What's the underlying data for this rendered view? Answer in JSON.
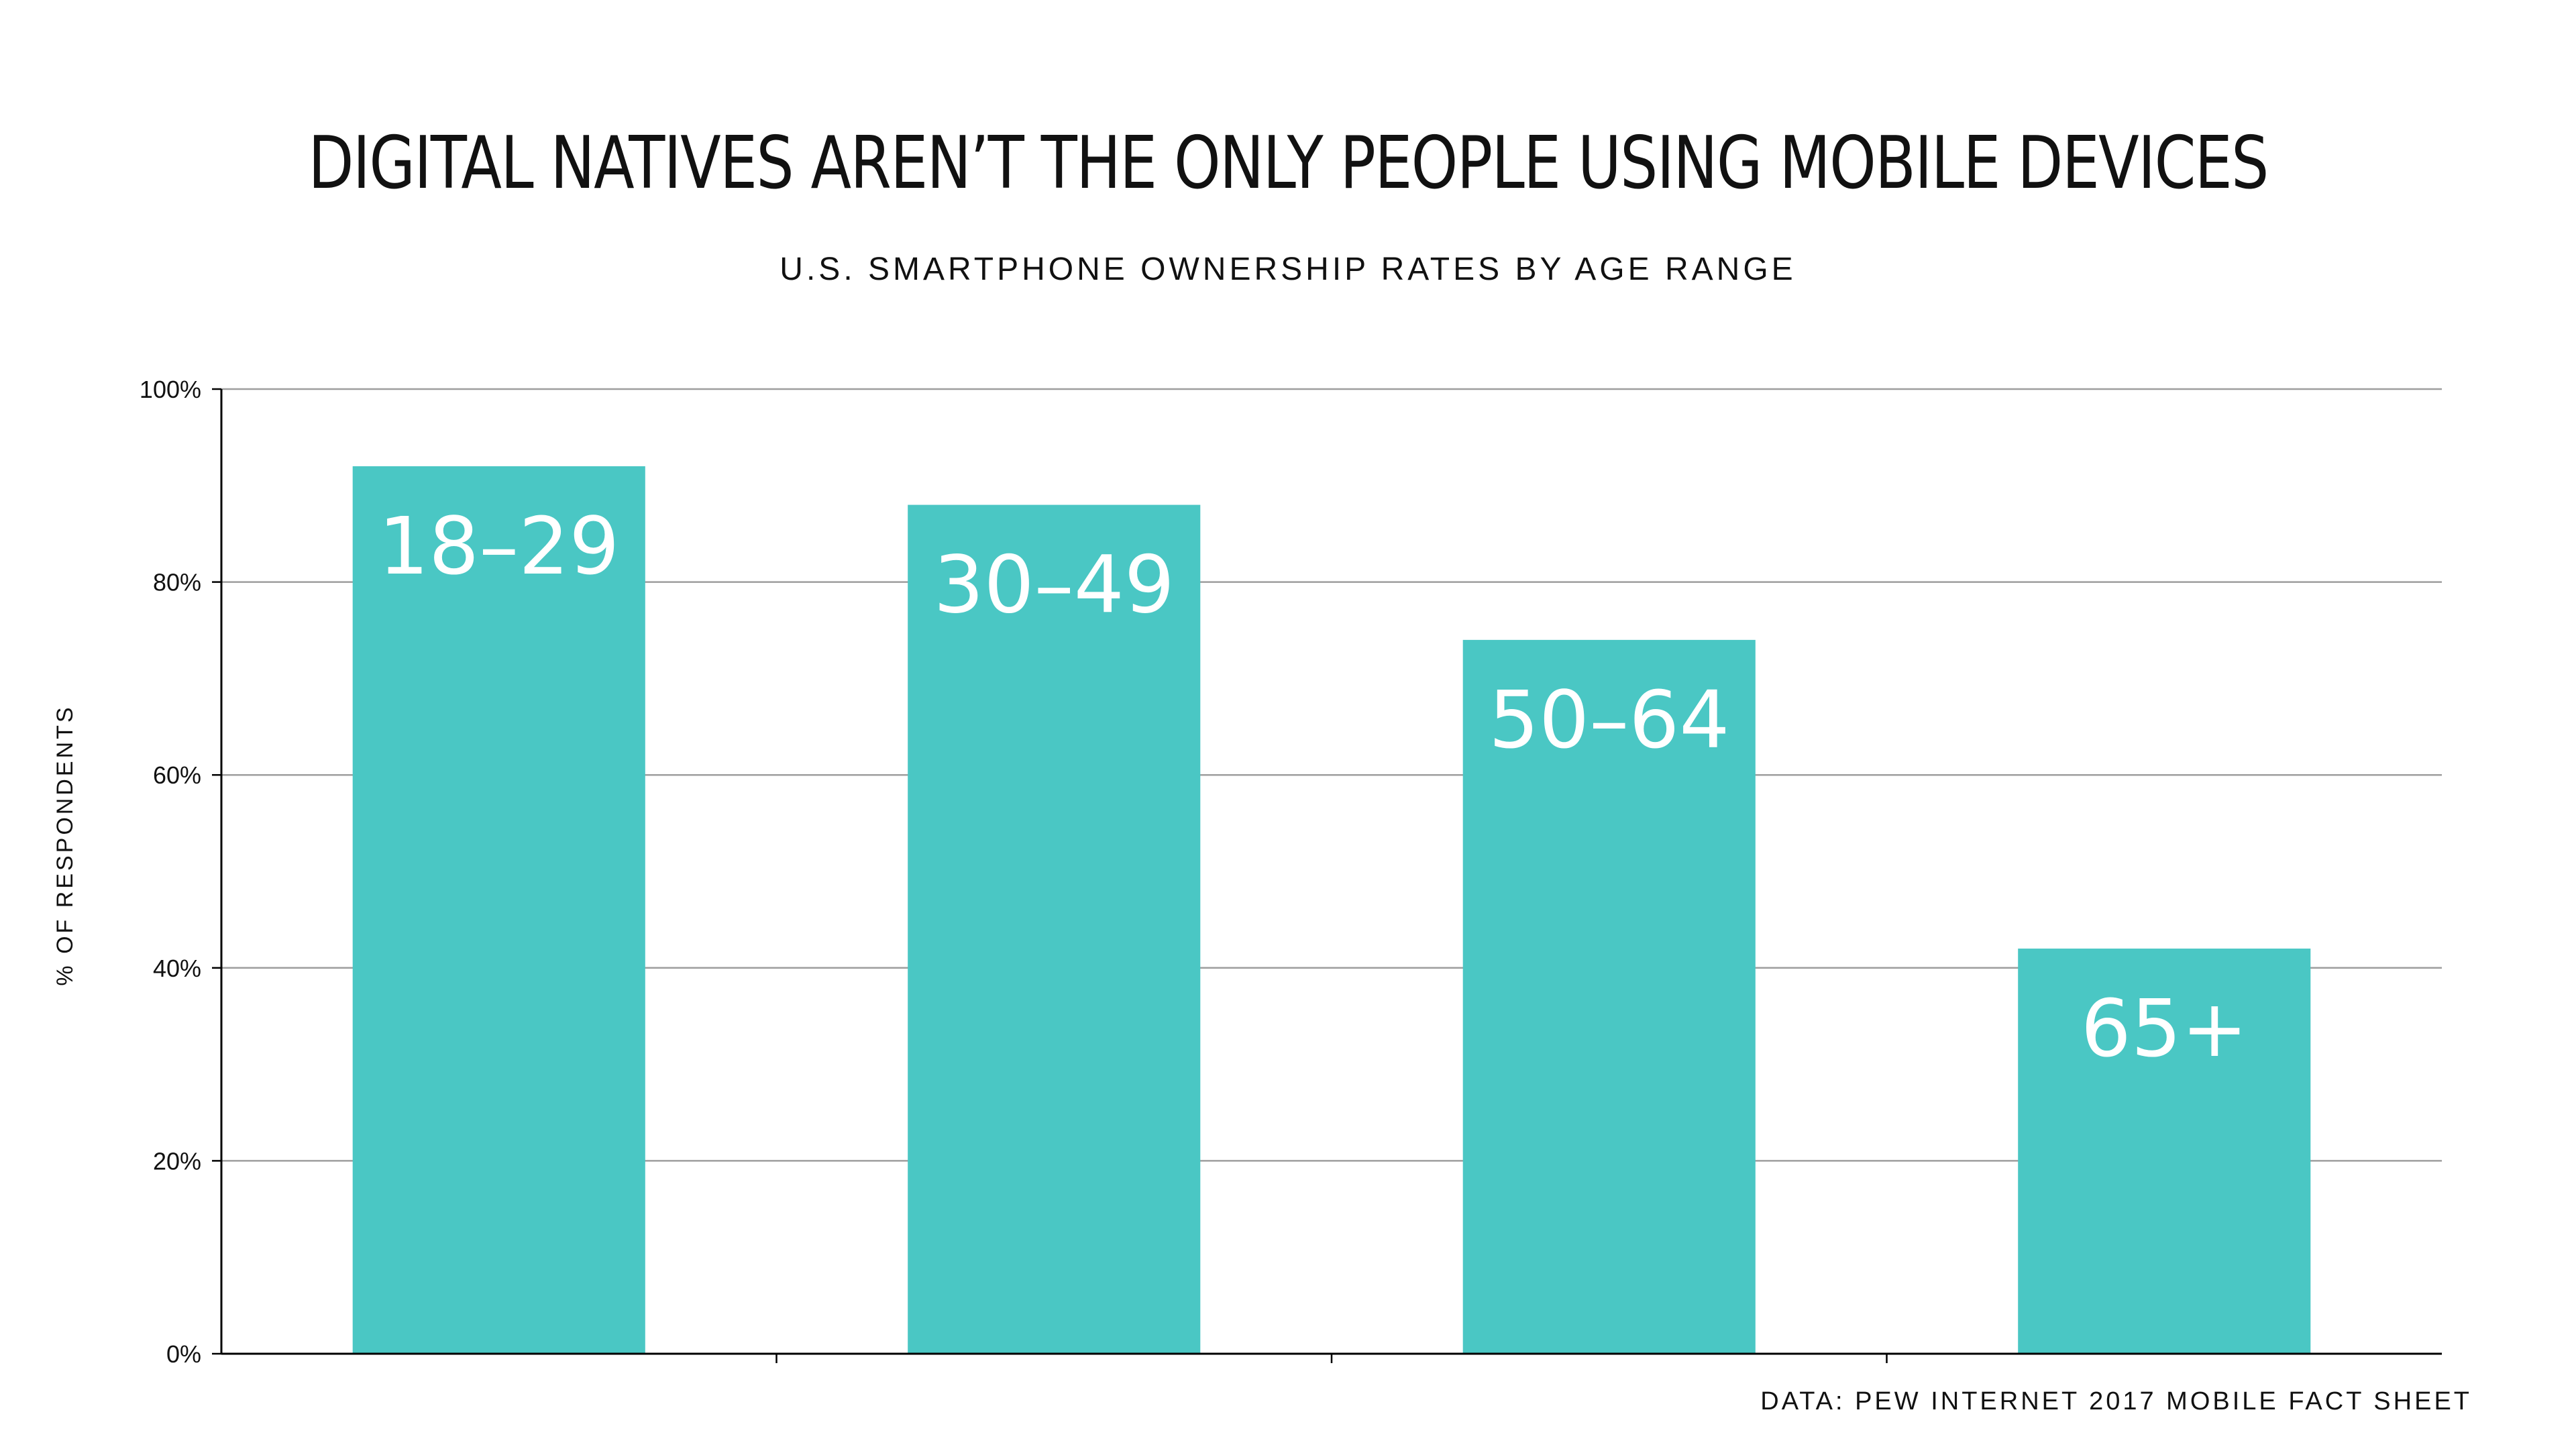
{
  "chart_data": {
    "type": "bar",
    "title": "DIGITAL NATIVES AREN’T THE ONLY PEOPLE USING MOBILE DEVICES",
    "subtitle": "U.S. SMARTPHONE OWNERSHIP RATES BY AGE RANGE",
    "ylabel": "% OF RESPONDENTS",
    "xlabel": "",
    "source": "DATA: PEW INTERNET 2017 MOBILE FACT SHEET",
    "categories": [
      "18–29",
      "30–49",
      "50–64",
      "65+"
    ],
    "values": [
      92,
      88,
      74,
      42
    ],
    "ylim": [
      0,
      100
    ],
    "yticks": [
      0,
      20,
      40,
      60,
      80,
      100
    ],
    "ytick_labels": [
      "0%",
      "20%",
      "40%",
      "60%",
      "80%",
      "100%"
    ],
    "grid": true,
    "legend": "none",
    "bar_color": "#4AC7C4",
    "gridline_color": "#9E9E9E",
    "axis_color": "#000000"
  }
}
